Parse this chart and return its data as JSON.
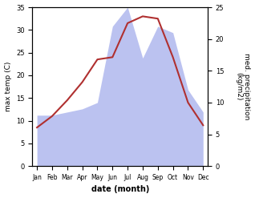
{
  "months": [
    "Jan",
    "Feb",
    "Mar",
    "Apr",
    "May",
    "Jun",
    "Jul",
    "Aug",
    "Sep",
    "Oct",
    "Nov",
    "Dec"
  ],
  "temp": [
    8.5,
    11.0,
    14.5,
    18.5,
    23.5,
    24.0,
    31.5,
    33.0,
    32.5,
    24.0,
    14.0,
    9.0
  ],
  "precip": [
    8.0,
    8.0,
    8.5,
    9.0,
    10.0,
    22.0,
    25.0,
    17.0,
    22.0,
    21.0,
    12.0,
    8.5
  ],
  "temp_color": "#b03030",
  "precip_color": "#b0b8ee",
  "ylim_temp": [
    0,
    35
  ],
  "ylim_precip": [
    0,
    25
  ],
  "yticks_temp": [
    0,
    5,
    10,
    15,
    20,
    25,
    30,
    35
  ],
  "yticks_precip": [
    0,
    5,
    10,
    15,
    20,
    25
  ],
  "ylabel_left": "max temp (C)",
  "ylabel_right": "med. precipitation\n(kg/m2)",
  "xlabel": "date (month)",
  "bg_color": "#ffffff"
}
